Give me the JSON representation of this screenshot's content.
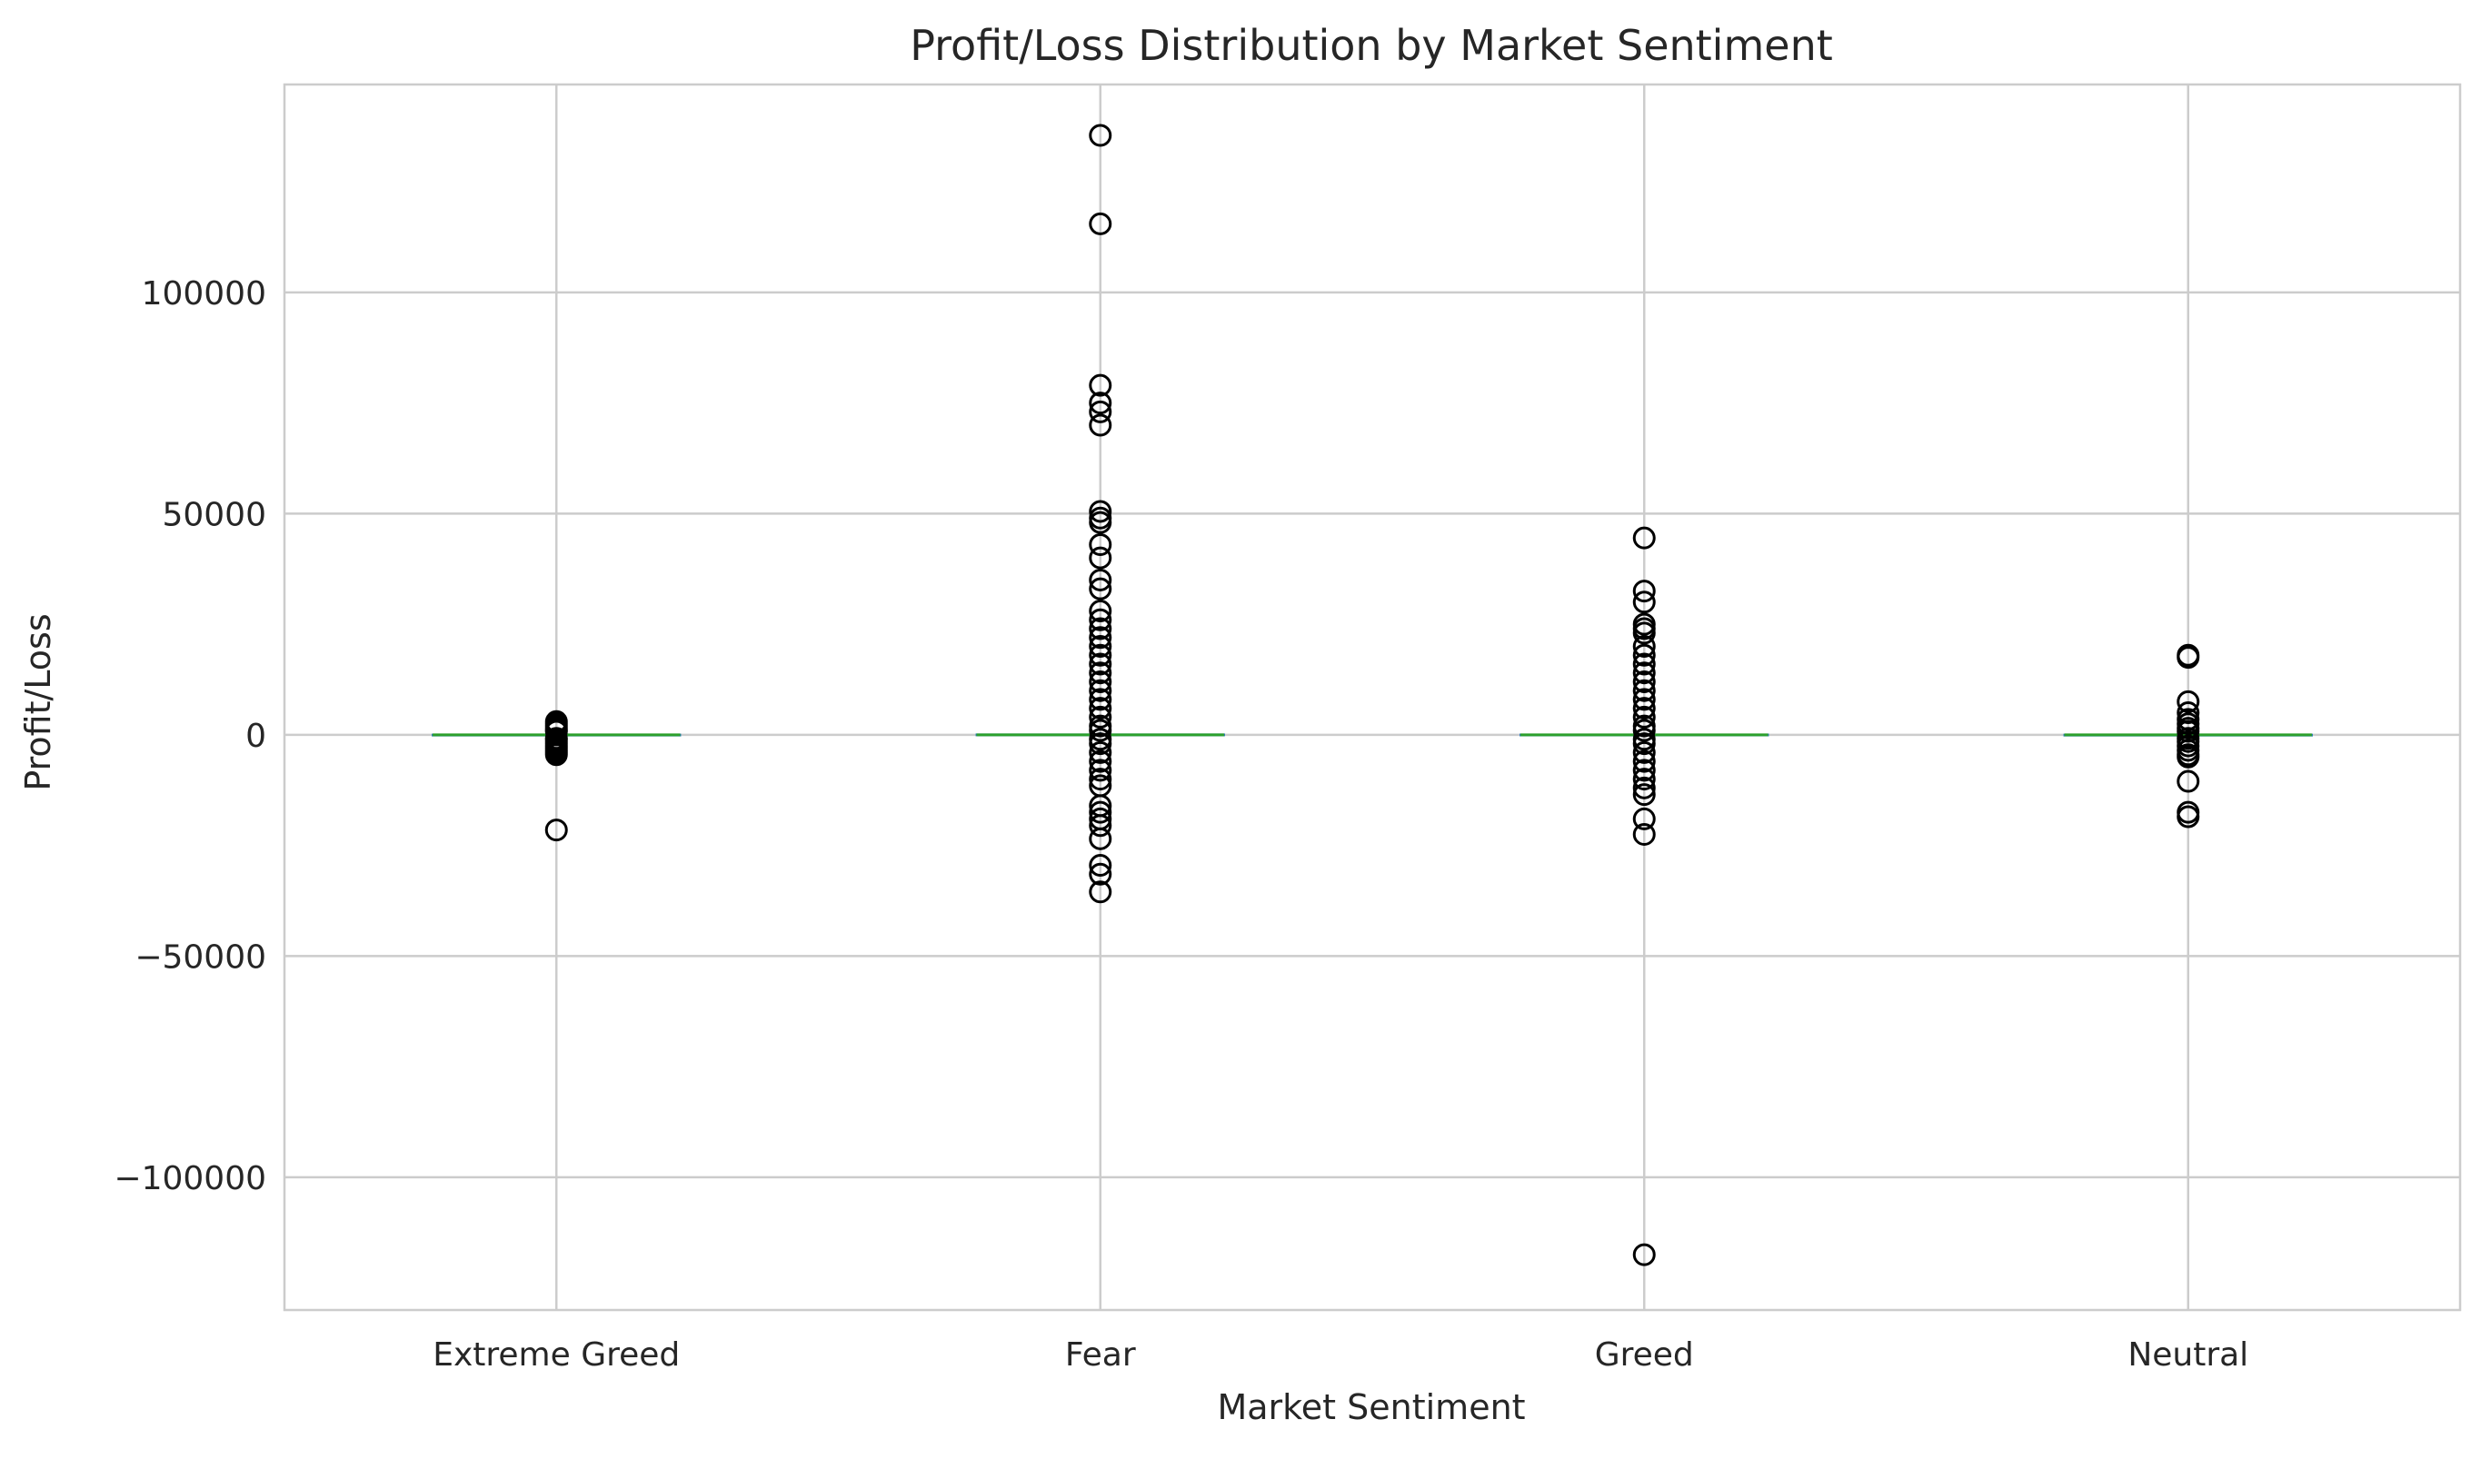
{
  "chart_data": {
    "type": "box",
    "title": "Profit/Loss Distribution by Market Sentiment",
    "xlabel": "Market Sentiment",
    "ylabel": "Profit/Loss",
    "ylim": [
      -130000,
      147000
    ],
    "yticks": [
      100000,
      50000,
      0,
      -50000,
      -100000
    ],
    "ytick_labels": [
      "100000",
      "50000",
      "0",
      "−50000",
      "−100000"
    ],
    "categories": [
      "Extreme Greed",
      "Fear",
      "Greed",
      "Neutral"
    ],
    "grid": true,
    "legend": "none",
    "colors": {
      "median": "#2ca02c",
      "box": "#1f77b4",
      "outlier_edge": "#000000",
      "grid": "#cccccc",
      "spine": "#cccccc"
    },
    "series": [
      {
        "category": "Extreme Greed",
        "whisker_low": -300,
        "q1": -30,
        "median": 0,
        "q3": 60,
        "whisker_high": 400,
        "outliers": [
          3000,
          2500,
          2000,
          1500,
          1000,
          800,
          -800,
          -1000,
          -1500,
          -2000,
          -2500,
          -3000,
          -3500,
          -4000,
          -4500,
          -21500
        ]
      },
      {
        "category": "Fear",
        "whisker_low": -500,
        "q1": -50,
        "median": 0,
        "q3": 100,
        "whisker_high": 600,
        "outliers": [
          135500,
          115500,
          79000,
          75000,
          73000,
          70000,
          50500,
          49000,
          48000,
          43000,
          40000,
          35000,
          33000,
          28000,
          26000,
          24000,
          22000,
          20000,
          18000,
          16000,
          14000,
          12000,
          10000,
          8000,
          6000,
          4000,
          2000,
          1000,
          -1000,
          -2000,
          -4000,
          -6000,
          -8000,
          -10000,
          -11500,
          -16000,
          -17500,
          -19000,
          -20500,
          -23500,
          -29500,
          -31500,
          -35500
        ]
      },
      {
        "category": "Greed",
        "whisker_low": -400,
        "q1": -40,
        "median": 0,
        "q3": 80,
        "whisker_high": 500,
        "outliers": [
          44500,
          32500,
          30000,
          25000,
          24000,
          23000,
          20000,
          18000,
          16000,
          14000,
          12000,
          10000,
          8000,
          6000,
          4000,
          2000,
          1000,
          -1000,
          -2000,
          -4000,
          -6000,
          -8000,
          -10000,
          -12000,
          -13500,
          -19000,
          -22500,
          -117500
        ]
      },
      {
        "category": "Neutral",
        "whisker_low": -300,
        "q1": -30,
        "median": 0,
        "q3": 50,
        "whisker_high": 350,
        "outliers": [
          18000,
          17500,
          7500,
          5000,
          3500,
          2500,
          1500,
          800,
          -800,
          -1500,
          -2500,
          -3500,
          -4500,
          -5000,
          -10500,
          -17500,
          -18500
        ]
      }
    ]
  }
}
